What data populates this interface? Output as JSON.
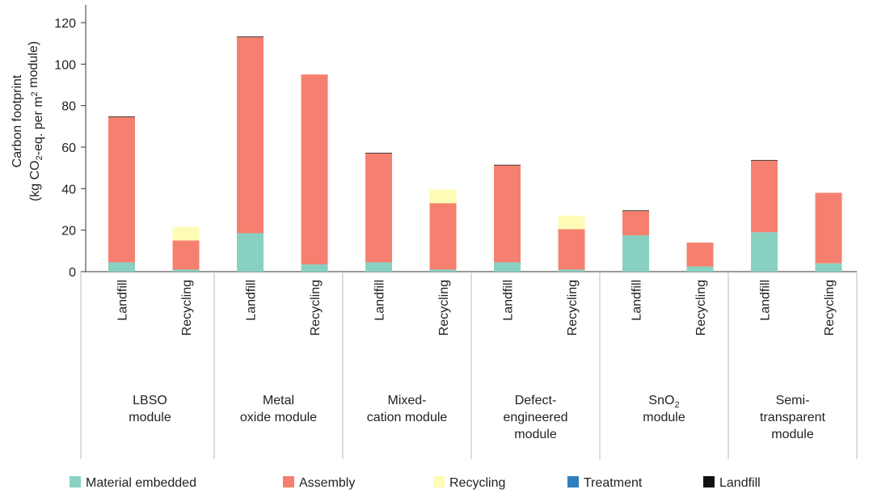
{
  "chart_data": {
    "type": "bar",
    "stacked": true,
    "title": "",
    "ylabel_line1": "Carbon footprint",
    "ylabel_line2": "(kg CO2-eq. per m2 module)",
    "ylim": [
      0,
      120
    ],
    "yticks": [
      0,
      20,
      40,
      60,
      80,
      100,
      120
    ],
    "grid": false,
    "legend_position": "bottom",
    "groups": [
      {
        "label": "LBSO\nmodule",
        "categories": [
          "Landfill",
          "Recycling"
        ]
      },
      {
        "label": "Metal\noxide module",
        "categories": [
          "Landfill",
          "Recycling"
        ]
      },
      {
        "label": "Mixed-\ncation module",
        "categories": [
          "Landfill",
          "Recycling"
        ]
      },
      {
        "label": "Defect-\nengineered\nmodule",
        "categories": [
          "Landfill",
          "Recycling"
        ]
      },
      {
        "label": "SnO2\nmodule",
        "categories": [
          "Landfill",
          "Recycling"
        ]
      },
      {
        "label": "Semi-\ntransparent\nmodule",
        "categories": [
          "Landfill",
          "Recycling"
        ]
      }
    ],
    "series": [
      {
        "name": "Material embedded",
        "color": "#88d1c1",
        "values": [
          4.5,
          1.0,
          18.5,
          3.5,
          4.5,
          1.0,
          4.5,
          1.0,
          17.5,
          2.5,
          19.0,
          4.0
        ]
      },
      {
        "name": "Assembly",
        "color": "#f6806f",
        "values": [
          70.0,
          14.0,
          94.5,
          91.5,
          52.5,
          32.0,
          46.7,
          19.5,
          11.7,
          11.5,
          34.5,
          34.0
        ]
      },
      {
        "name": "Recycling",
        "color": "#fdfbb5",
        "values": [
          0,
          6.5,
          0,
          0,
          0,
          6.5,
          0,
          6.5,
          0,
          0,
          0,
          0
        ]
      },
      {
        "name": "Treatment",
        "color": "#2e7fbf",
        "values": [
          0,
          0,
          0,
          0,
          0,
          0,
          0,
          0,
          0,
          0,
          0,
          0
        ]
      },
      {
        "name": "Landfill",
        "color": "#111111",
        "values": [
          0.3,
          0,
          0.3,
          0,
          0.3,
          0,
          0.3,
          0,
          0.3,
          0,
          0.3,
          0
        ]
      }
    ]
  }
}
